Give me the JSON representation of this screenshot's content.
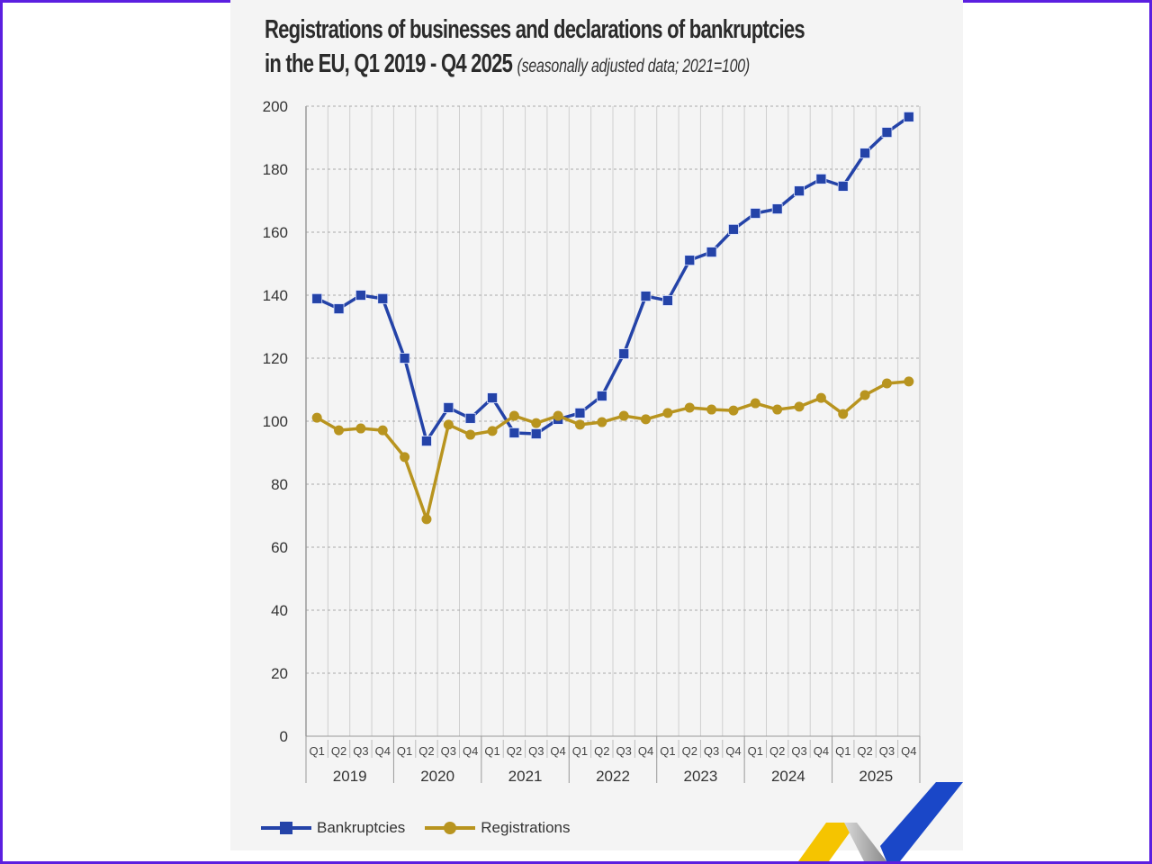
{
  "title": "Registrations of businesses and declarations of bankruptcies",
  "title_line2": "in the EU, Q1 2019 - Q4 2025",
  "subtitle": "(seasonally adjusted data; 2021=100)",
  "chart_data": {
    "type": "line",
    "title": "Registrations of businesses and declarations of bankruptcies in the EU, Q1 2019 - Q4 2025",
    "subtitle": "(seasonally adjusted data; 2021=100)",
    "quarters": [
      "Q1",
      "Q2",
      "Q3",
      "Q4"
    ],
    "years": [
      "2019",
      "2020",
      "2021",
      "2022",
      "2023",
      "2024",
      "2025"
    ],
    "ylim": [
      0,
      200
    ],
    "yticks": [
      0,
      20,
      40,
      60,
      80,
      100,
      120,
      140,
      160,
      180,
      200
    ],
    "grid": true,
    "legend_position": "bottom-left",
    "series": [
      {
        "name": "Bankruptcies",
        "color": "#2443a8",
        "marker": "square",
        "values": [
          138.9,
          135.7,
          140.0,
          138.9,
          120.0,
          93.7,
          104.3,
          100.9,
          107.4,
          96.3,
          96.0,
          100.6,
          102.6,
          108.0,
          121.4,
          139.7,
          138.3,
          151.1,
          153.7,
          160.9,
          166.0,
          167.4,
          173.1,
          176.9,
          174.6,
          185.1,
          191.7,
          196.6
        ]
      },
      {
        "name": "Registrations",
        "color": "#b8941f",
        "marker": "circle",
        "values": [
          101.1,
          97.1,
          97.7,
          97.1,
          88.6,
          68.9,
          98.9,
          95.7,
          96.9,
          101.7,
          99.4,
          101.7,
          98.9,
          99.7,
          101.7,
          100.6,
          102.6,
          104.3,
          103.7,
          103.4,
          105.7,
          103.7,
          104.6,
          107.4,
          102.3,
          108.3,
          112.0,
          112.6
        ]
      }
    ]
  },
  "logo_colors": [
    "#f5c400",
    "#a0a0a0",
    "#1a47c8"
  ]
}
